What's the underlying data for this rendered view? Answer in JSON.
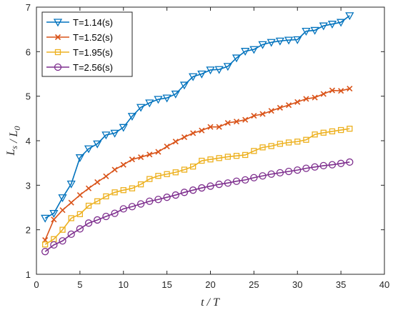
{
  "chart_data": {
    "type": "line",
    "title": "",
    "xlabel": "t / T",
    "ylabel": "L_s / L_0",
    "xlim": [
      0,
      40
    ],
    "ylim": [
      1,
      7
    ],
    "xticks": [
      "0",
      "5",
      "10",
      "15",
      "20",
      "25",
      "30",
      "35",
      "40"
    ],
    "yticks": [
      "1",
      "2",
      "3",
      "4",
      "5",
      "6",
      "7"
    ],
    "grid": false,
    "legend_position": "top-left",
    "x": [
      1,
      2,
      3,
      4,
      5,
      6,
      7,
      8,
      9,
      10,
      11,
      12,
      13,
      14,
      15,
      16,
      17,
      18,
      19,
      20,
      21,
      22,
      23,
      24,
      25,
      26,
      27,
      28,
      29,
      30,
      31,
      32,
      33,
      34,
      35,
      36
    ],
    "series": [
      {
        "name": "T=1.14(s)",
        "color": "#0072BD",
        "marker": "triangle-down",
        "values": [
          2.26,
          2.37,
          2.72,
          3.03,
          3.62,
          3.82,
          3.93,
          4.13,
          4.17,
          4.3,
          4.55,
          4.75,
          4.85,
          4.93,
          4.96,
          5.05,
          5.25,
          5.44,
          5.5,
          5.59,
          5.6,
          5.67,
          5.86,
          6.01,
          6.05,
          6.16,
          6.21,
          6.24,
          6.26,
          6.27,
          6.46,
          6.48,
          6.58,
          6.62,
          6.66,
          6.81
        ]
      },
      {
        "name": "T=1.52(s)",
        "color": "#D95319",
        "marker": "x",
        "values": [
          1.77,
          2.23,
          2.44,
          2.61,
          2.78,
          2.93,
          3.07,
          3.2,
          3.35,
          3.46,
          3.58,
          3.63,
          3.69,
          3.75,
          3.87,
          3.98,
          4.08,
          4.17,
          4.23,
          4.31,
          4.31,
          4.4,
          4.43,
          4.47,
          4.56,
          4.6,
          4.67,
          4.74,
          4.8,
          4.87,
          4.94,
          4.97,
          5.05,
          5.13,
          5.12,
          5.17
        ]
      },
      {
        "name": "T=1.95(s)",
        "color": "#EDB120",
        "marker": "square",
        "values": [
          1.67,
          1.79,
          2.0,
          2.26,
          2.35,
          2.54,
          2.64,
          2.75,
          2.84,
          2.89,
          2.93,
          3.02,
          3.14,
          3.21,
          3.25,
          3.29,
          3.35,
          3.42,
          3.55,
          3.58,
          3.61,
          3.64,
          3.66,
          3.68,
          3.77,
          3.85,
          3.88,
          3.93,
          3.96,
          3.98,
          4.02,
          4.14,
          4.18,
          4.21,
          4.24,
          4.27
        ]
      },
      {
        "name": "T=2.56(s)",
        "color": "#7E2F8E",
        "marker": "circle",
        "values": [
          1.51,
          1.66,
          1.75,
          1.9,
          2.02,
          2.15,
          2.22,
          2.3,
          2.37,
          2.47,
          2.52,
          2.58,
          2.64,
          2.68,
          2.73,
          2.78,
          2.84,
          2.89,
          2.94,
          2.98,
          3.02,
          3.05,
          3.09,
          3.12,
          3.17,
          3.21,
          3.25,
          3.28,
          3.31,
          3.34,
          3.38,
          3.41,
          3.44,
          3.46,
          3.49,
          3.52
        ]
      }
    ]
  }
}
